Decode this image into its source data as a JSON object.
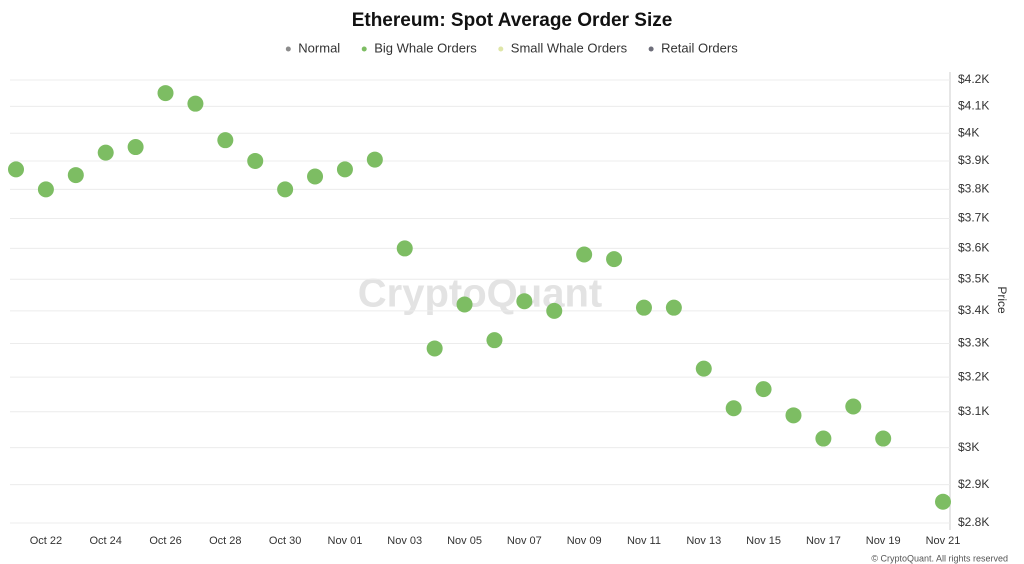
{
  "chart_data": {
    "type": "scatter",
    "title": "Ethereum: Spot Average Order Size",
    "watermark": "CryptoQuant",
    "footer": "© CryptoQuant. All rights reserved",
    "y_label": "Price",
    "yscale": "log",
    "grid": true,
    "legend": "top",
    "categories": [
      null,
      "Oct 22",
      null,
      "Oct 24",
      null,
      "Oct 26",
      null,
      "Oct 28",
      null,
      "Oct 30",
      null,
      "Nov 01",
      null,
      "Nov 03",
      null,
      "Nov 05",
      null,
      "Nov 07",
      null,
      "Nov 09",
      null,
      "Nov 11",
      null,
      "Nov 13",
      null,
      "Nov 15",
      null,
      "Nov 17",
      null,
      "Nov 19",
      null,
      "Nov 21"
    ],
    "series": [
      {
        "name": "Normal",
        "color": "#8c8c8c",
        "values": [
          null,
          null,
          null,
          null,
          null,
          null,
          null,
          null,
          null,
          null,
          null,
          null,
          null,
          null,
          null,
          null,
          null,
          null,
          null,
          null,
          null,
          null,
          null,
          null,
          null,
          null,
          null,
          null,
          null,
          null,
          null,
          null
        ]
      },
      {
        "name": "Big Whale Orders",
        "color": "#7dbd63",
        "values": [
          3870,
          3800,
          3850,
          3930,
          3950,
          4150,
          4110,
          3975,
          3900,
          3800,
          3845,
          3870,
          3905,
          3600,
          3285,
          3420,
          3310,
          3430,
          3400,
          3580,
          3565,
          3410,
          3410,
          3225,
          3110,
          3165,
          3090,
          3025,
          3115,
          3025,
          null,
          2855
        ]
      },
      {
        "name": "Small Whale Orders",
        "color": "#dfe6a8",
        "values": [
          null,
          null,
          null,
          null,
          null,
          null,
          null,
          null,
          null,
          null,
          null,
          null,
          null,
          null,
          null,
          null,
          null,
          null,
          null,
          null,
          null,
          null,
          null,
          null,
          null,
          null,
          null,
          null,
          null,
          null,
          null,
          null
        ]
      },
      {
        "name": "Retail Orders",
        "color": "#6e6e7a",
        "values": [
          null,
          null,
          null,
          null,
          null,
          null,
          null,
          null,
          null,
          null,
          null,
          null,
          null,
          null,
          null,
          null,
          null,
          null,
          null,
          null,
          null,
          null,
          null,
          null,
          null,
          null,
          null,
          null,
          null,
          null,
          null,
          null
        ]
      }
    ],
    "ylim": [
      2800,
      4200
    ],
    "yticks": [
      {
        "value": 2800,
        "label": "$2.8K"
      },
      {
        "value": 2900,
        "label": "$2.9K"
      },
      {
        "value": 3000,
        "label": "$3K"
      },
      {
        "value": 3100,
        "label": "$3.1K"
      },
      {
        "value": 3200,
        "label": "$3.2K"
      },
      {
        "value": 3300,
        "label": "$3.3K"
      },
      {
        "value": 3400,
        "label": "$3.4K"
      },
      {
        "value": 3500,
        "label": "$3.5K"
      },
      {
        "value": 3600,
        "label": "$3.6K"
      },
      {
        "value": 3700,
        "label": "$3.7K"
      },
      {
        "value": 3800,
        "label": "$3.8K"
      },
      {
        "value": 3900,
        "label": "$3.9K"
      },
      {
        "value": 4000,
        "label": "$4K"
      },
      {
        "value": 4100,
        "label": "$4.1K"
      },
      {
        "value": 4200,
        "label": "$4.2K"
      }
    ]
  }
}
